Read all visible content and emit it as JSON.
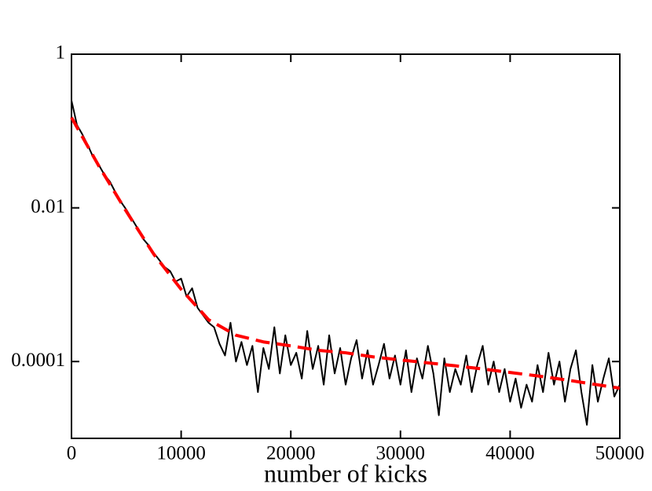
{
  "chart_data": {
    "type": "line",
    "x_label": "number of kicks",
    "xlim": [
      0,
      50000
    ],
    "xticks": [
      0,
      10000,
      20000,
      30000,
      40000,
      50000
    ],
    "ylim": [
      1e-05,
      1
    ],
    "yticks": [
      1,
      0.01,
      0.0001
    ],
    "y_log": true,
    "x": [
      0,
      500,
      1000,
      1500,
      2000,
      2500,
      3000,
      3500,
      4000,
      4500,
      5000,
      5500,
      6000,
      6500,
      7000,
      7500,
      8000,
      8500,
      9000,
      9500,
      10000,
      10500,
      11000,
      11500,
      12000,
      12500,
      13000,
      13500,
      14000,
      14500,
      15000,
      15500,
      16000,
      16500,
      17000,
      17500,
      18000,
      18500,
      19000,
      19500,
      20000,
      20500,
      21000,
      21500,
      22000,
      22500,
      23000,
      23500,
      24000,
      24500,
      25000,
      25500,
      26000,
      26500,
      27000,
      27500,
      28000,
      28500,
      29000,
      29500,
      30000,
      30500,
      31000,
      31500,
      32000,
      32500,
      33000,
      33500,
      34000,
      34500,
      35000,
      35500,
      36000,
      36500,
      37000,
      37500,
      38000,
      38500,
      39000,
      39500,
      40000,
      40500,
      41000,
      41500,
      42000,
      42500,
      43000,
      43500,
      44000,
      44500,
      45000,
      45500,
      46000,
      46500,
      47000,
      47500,
      48000,
      48500,
      49000,
      49500,
      50000
    ],
    "series": [
      {
        "color": "#000000",
        "dashed": false,
        "values": [
          0.25,
          0.12,
          0.09,
          0.065,
          0.045,
          0.036,
          0.027,
          0.022,
          0.016,
          0.012,
          0.0095,
          0.0072,
          0.0055,
          0.004,
          0.0033,
          0.0026,
          0.0021,
          0.0017,
          0.0015,
          0.0011,
          0.0012,
          0.0007,
          0.0009,
          0.0005,
          0.0004,
          0.00032,
          0.00028,
          0.00017,
          0.00012,
          0.00032,
          0.0001,
          0.00018,
          9e-05,
          0.00016,
          4e-05,
          0.00015,
          8e-05,
          0.00028,
          7e-05,
          0.00022,
          9e-05,
          0.00013,
          6e-05,
          0.00025,
          8e-05,
          0.00016,
          5e-05,
          0.00022,
          7e-05,
          0.00015,
          5e-05,
          0.00011,
          0.00019,
          6e-05,
          0.00014,
          5e-05,
          9e-05,
          0.00017,
          6e-05,
          0.00012,
          5e-05,
          0.00014,
          4e-05,
          0.00011,
          6e-05,
          0.00016,
          7e-05,
          2e-05,
          0.00011,
          4e-05,
          8e-05,
          5e-05,
          0.00012,
          4e-05,
          9e-05,
          0.00016,
          5e-05,
          0.0001,
          4e-05,
          8e-05,
          3e-05,
          6e-05,
          2.5e-05,
          5e-05,
          3e-05,
          9e-05,
          4e-05,
          0.00013,
          5e-05,
          0.0001,
          3e-05,
          8e-05,
          0.00014,
          4e-05,
          1.5e-05,
          9e-05,
          3e-05,
          6e-05,
          0.00011,
          3.5e-05,
          5e-05
        ]
      },
      {
        "color": "#ff0000",
        "dashed": true,
        "x": [
          0,
          2500,
          5000,
          7500,
          10000,
          12500,
          15000,
          17500,
          20000,
          22500,
          25000,
          27500,
          30000,
          32500,
          35000,
          37500,
          40000,
          42500,
          45000,
          47500,
          50000
        ],
        "values": [
          0.15,
          0.035,
          0.009,
          0.0025,
          0.00087,
          0.00035,
          0.00022,
          0.00018,
          0.00016,
          0.00014,
          0.00013,
          0.000115,
          0.000105,
          9.6e-05,
          8.8e-05,
          8e-05,
          7.2e-05,
          6.5e-05,
          5.8e-05,
          5.1e-05,
          4.5e-05
        ]
      }
    ]
  }
}
